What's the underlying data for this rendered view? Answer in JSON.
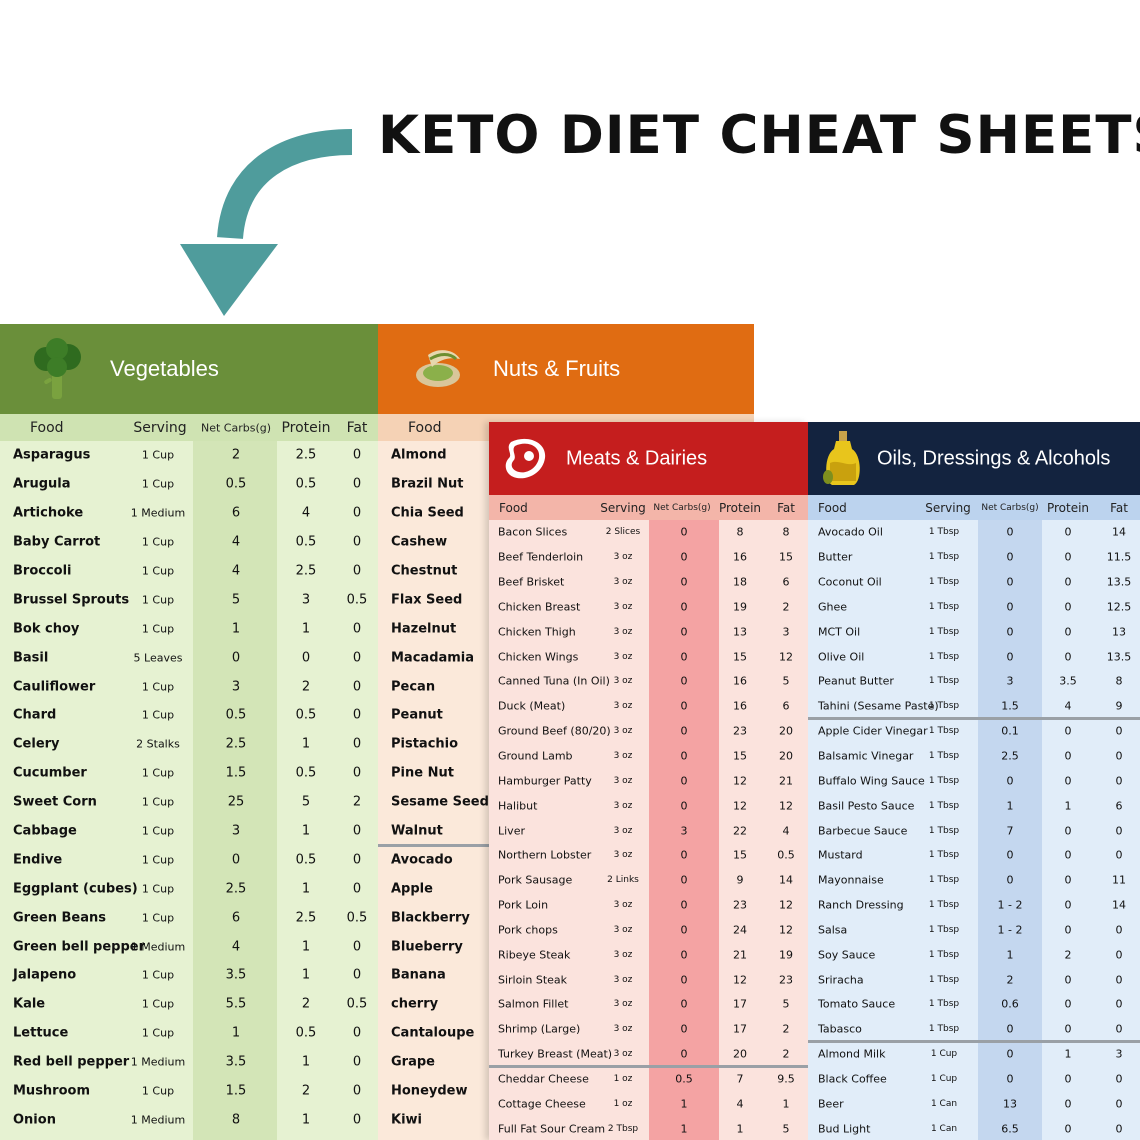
{
  "title": "KETO DIET CHEAT SHEETS",
  "colors": {
    "veg": "#6a8f3a",
    "nuts": "#e06c12",
    "meat": "#c51e1e",
    "oil": "#13233f",
    "arrow": "#4f9c9c"
  },
  "icons": {
    "veg": "broccoli-icon",
    "nuts": "pistachio-icon",
    "meat": "steak-icon",
    "oil": "olive-oil-icon"
  },
  "veg": {
    "title": "Vegetables",
    "cols": [
      "Food",
      "Serving",
      "Net Carbs(g)",
      "Protein",
      "Fat"
    ],
    "rows": [
      [
        "Asparagus",
        "1 Cup",
        "2",
        "2.5",
        "0"
      ],
      [
        "Arugula",
        "1 Cup",
        "0.5",
        "0.5",
        "0"
      ],
      [
        "Artichoke",
        "1 Medium",
        "6",
        "4",
        "0"
      ],
      [
        "Baby Carrot",
        "1 Cup",
        "4",
        "0.5",
        "0"
      ],
      [
        "Broccoli",
        "1 Cup",
        "4",
        "2.5",
        "0"
      ],
      [
        "Brussel Sprouts",
        "1 Cup",
        "5",
        "3",
        "0.5"
      ],
      [
        "Bok choy",
        "1 Cup",
        "1",
        "1",
        "0"
      ],
      [
        "Basil",
        "5 Leaves",
        "0",
        "0",
        "0"
      ],
      [
        "Cauliflower",
        "1 Cup",
        "3",
        "2",
        "0"
      ],
      [
        "Chard",
        "1 Cup",
        "0.5",
        "0.5",
        "0"
      ],
      [
        "Celery",
        "2 Stalks",
        "2.5",
        "1",
        "0"
      ],
      [
        "Cucumber",
        "1 Cup",
        "1.5",
        "0.5",
        "0"
      ],
      [
        "Sweet Corn",
        "1 Cup",
        "25",
        "5",
        "2"
      ],
      [
        "Cabbage",
        "1 Cup",
        "3",
        "1",
        "0"
      ],
      [
        "Endive",
        "1 Cup",
        "0",
        "0.5",
        "0"
      ],
      [
        "Eggplant (cubes)",
        "1 Cup",
        "2.5",
        "1",
        "0"
      ],
      [
        "Green Beans",
        "1 Cup",
        "6",
        "2.5",
        "0.5"
      ],
      [
        "Green bell pepper",
        "1 Medium",
        "4",
        "1",
        "0"
      ],
      [
        "Jalapeno",
        "1 Cup",
        "3.5",
        "1",
        "0"
      ],
      [
        "Kale",
        "1 Cup",
        "5.5",
        "2",
        "0.5"
      ],
      [
        "Lettuce",
        "1 Cup",
        "1",
        "0.5",
        "0"
      ],
      [
        "Red bell pepper",
        "1 Medium",
        "3.5",
        "1",
        "0"
      ],
      [
        "Mushroom",
        "1 Cup",
        "1.5",
        "2",
        "0"
      ],
      [
        "Onion",
        "1 Medium",
        "8",
        "1",
        "0"
      ]
    ]
  },
  "nuts": {
    "title": "Nuts & Fruits",
    "cols": [
      "Food"
    ],
    "rows": [
      "Almond",
      "Brazil Nut",
      "Chia Seed",
      "Cashew",
      "Chestnut",
      "Flax Seed",
      "Hazelnut",
      "Macadamia",
      "Pecan",
      "Peanut",
      "Pistachio",
      "Pine Nut",
      "Sesame Seed",
      "Walnut",
      "Avocado",
      "Apple",
      "Blackberry",
      "Blueberry",
      "Banana",
      "cherry",
      "Cantaloupe",
      "Grape",
      "Honeydew",
      "Kiwi"
    ]
  },
  "meat": {
    "title": "Meats & Dairies",
    "cols": [
      "Food",
      "Serving",
      "Net Carbs(g)",
      "Protein",
      "Fat"
    ],
    "rows": [
      [
        "Bacon Slices",
        "2 Slices",
        "0",
        "8",
        "8"
      ],
      [
        "Beef Tenderloin",
        "3 oz",
        "0",
        "16",
        "15"
      ],
      [
        "Beef Brisket",
        "3 oz",
        "0",
        "18",
        "6"
      ],
      [
        "Chicken Breast",
        "3 oz",
        "0",
        "19",
        "2"
      ],
      [
        "Chicken Thigh",
        "3 oz",
        "0",
        "13",
        "3"
      ],
      [
        "Chicken Wings",
        "3 oz",
        "0",
        "15",
        "12"
      ],
      [
        "Canned Tuna (In Oil)",
        "3 oz",
        "0",
        "16",
        "5"
      ],
      [
        "Duck (Meat)",
        "3 oz",
        "0",
        "16",
        "6"
      ],
      [
        "Ground Beef (80/20)",
        "3 oz",
        "0",
        "23",
        "20"
      ],
      [
        "Ground Lamb",
        "3 oz",
        "0",
        "15",
        "20"
      ],
      [
        "Hamburger Patty",
        "3 oz",
        "0",
        "12",
        "21"
      ],
      [
        "Halibut",
        "3 oz",
        "0",
        "12",
        "12"
      ],
      [
        "Liver",
        "3 oz",
        "3",
        "22",
        "4"
      ],
      [
        "Northern Lobster",
        "3 oz",
        "0",
        "15",
        "0.5"
      ],
      [
        "Pork Sausage",
        "2 Links",
        "0",
        "9",
        "14"
      ],
      [
        "Pork Loin",
        "3 oz",
        "0",
        "23",
        "12"
      ],
      [
        "Pork chops",
        "3 oz",
        "0",
        "24",
        "12"
      ],
      [
        "Ribeye Steak",
        "3 oz",
        "0",
        "21",
        "19"
      ],
      [
        "Sirloin Steak",
        "3 oz",
        "0",
        "12",
        "23"
      ],
      [
        "Salmon Fillet",
        "3 oz",
        "0",
        "17",
        "5"
      ],
      [
        "Shrimp (Large)",
        "3 oz",
        "0",
        "17",
        "2"
      ],
      [
        "Turkey Breast (Meat)",
        "3 oz",
        "0",
        "20",
        "2"
      ],
      [
        "Cheddar Cheese",
        "1 oz",
        "0.5",
        "7",
        "9.5"
      ],
      [
        "Cottage Cheese",
        "1 oz",
        "1",
        "4",
        "1"
      ],
      [
        "Full Fat Sour Cream",
        "2 Tbsp",
        "1",
        "1",
        "5"
      ]
    ]
  },
  "oil": {
    "title": "Oils, Dressings & Alcohols",
    "cols": [
      "Food",
      "Serving",
      "Net Carbs(g)",
      "Protein",
      "Fat"
    ],
    "rows": [
      [
        "Avocado Oil",
        "1 Tbsp",
        "0",
        "0",
        "14"
      ],
      [
        "Butter",
        "1 Tbsp",
        "0",
        "0",
        "11.5"
      ],
      [
        "Coconut Oil",
        "1 Tbsp",
        "0",
        "0",
        "13.5"
      ],
      [
        "Ghee",
        "1 Tbsp",
        "0",
        "0",
        "12.5"
      ],
      [
        "MCT Oil",
        "1 Tbsp",
        "0",
        "0",
        "13"
      ],
      [
        "Olive Oil",
        "1 Tbsp",
        "0",
        "0",
        "13.5"
      ],
      [
        "Peanut Butter",
        "1 Tbsp",
        "3",
        "3.5",
        "8"
      ],
      [
        "Tahini (Sesame Paste)",
        "1 Tbsp",
        "1.5",
        "4",
        "9"
      ],
      [
        "Apple Cider Vinegar",
        "1 Tbsp",
        "0.1",
        "0",
        "0"
      ],
      [
        "Balsamic Vinegar",
        "1 Tbsp",
        "2.5",
        "0",
        "0"
      ],
      [
        "Buffalo Wing Sauce",
        "1 Tbsp",
        "0",
        "0",
        "0"
      ],
      [
        "Basil Pesto Sauce",
        "1 Tbsp",
        "1",
        "1",
        "6"
      ],
      [
        "Barbecue Sauce",
        "1 Tbsp",
        "7",
        "0",
        "0"
      ],
      [
        "Mustard",
        "1 Tbsp",
        "0",
        "0",
        "0"
      ],
      [
        "Mayonnaise",
        "1 Tbsp",
        "0",
        "0",
        "11"
      ],
      [
        "Ranch Dressing",
        "1 Tbsp",
        "1 - 2",
        "0",
        "14"
      ],
      [
        "Salsa",
        "1 Tbsp",
        "1 - 2",
        "0",
        "0"
      ],
      [
        "Soy Sauce",
        "1 Tbsp",
        "1",
        "2",
        "0"
      ],
      [
        "Sriracha",
        "1 Tbsp",
        "2",
        "0",
        "0"
      ],
      [
        "Tomato Sauce",
        "1 Tbsp",
        "0.6",
        "0",
        "0"
      ],
      [
        "Tabasco",
        "1 Tbsp",
        "0",
        "0",
        "0"
      ],
      [
        "Almond Milk",
        "1 Cup",
        "0",
        "1",
        "3"
      ],
      [
        "Black Coffee",
        "1 Cup",
        "0",
        "0",
        "0"
      ],
      [
        "Beer",
        "1 Can",
        "13",
        "0",
        "0"
      ],
      [
        "Bud Light",
        "1 Can",
        "6.5",
        "0",
        "0"
      ]
    ]
  }
}
